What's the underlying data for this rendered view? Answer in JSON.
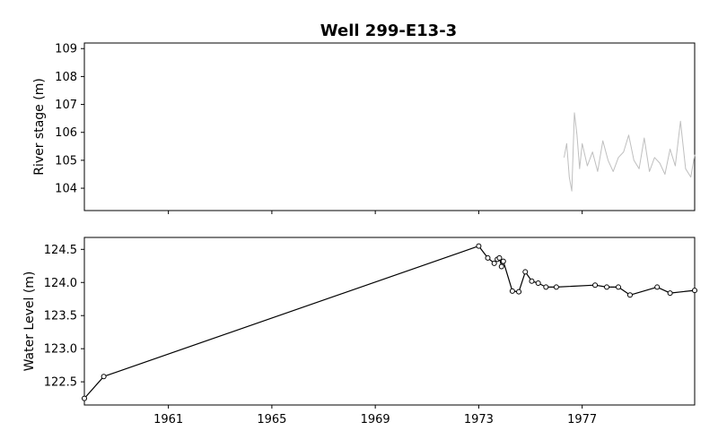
{
  "chart_data": [
    {
      "type": "line",
      "title": "Well 299-E13-3",
      "xlabel": "",
      "ylabel": "River stage (m)",
      "ylim": [
        103.2,
        109.2
      ],
      "yticks": [
        104,
        105,
        106,
        107,
        108,
        109
      ],
      "xlim": [
        1957.75,
        1981.35
      ],
      "x_tick_labels_shown": false,
      "series": [
        {
          "color": "#bfbfbf",
          "x": [
            1976.3,
            1976.4,
            1976.5,
            1976.6,
            1976.7,
            1976.8,
            1976.9,
            1977.0,
            1977.2,
            1977.4,
            1977.6,
            1977.8,
            1978.0,
            1978.2,
            1978.4,
            1978.6,
            1978.8,
            1979.0,
            1979.2,
            1979.4,
            1979.6,
            1979.8,
            1980.0,
            1980.2,
            1980.4,
            1980.6,
            1980.8,
            1981.0,
            1981.2,
            1981.35
          ],
          "y": [
            105.1,
            105.6,
            104.4,
            103.9,
            106.7,
            105.9,
            104.7,
            105.6,
            104.8,
            105.3,
            104.6,
            105.7,
            105.0,
            104.6,
            105.1,
            105.3,
            105.9,
            105.0,
            104.7,
            105.8,
            104.6,
            105.1,
            104.9,
            104.5,
            105.4,
            104.8,
            106.4,
            104.7,
            104.4,
            105.2
          ]
        }
      ]
    },
    {
      "type": "line",
      "xlabel": "",
      "ylabel": "Water Level (m)",
      "ylim": [
        122.15,
        124.68
      ],
      "yticks": [
        122.5,
        123.0,
        123.5,
        124.0,
        124.5
      ],
      "ytick_labels": [
        "122.5",
        "123.0",
        "123.5",
        "124.0",
        "124.5"
      ],
      "xlim": [
        1957.75,
        1981.35
      ],
      "xticks": [
        1961,
        1965,
        1969,
        1973,
        1977
      ],
      "xtick_labels": [
        "1961",
        "1965",
        "1969",
        "1973",
        "1977"
      ],
      "series": [
        {
          "color": "#000000",
          "marker": "circle-open",
          "x": [
            1957.75,
            1958.5,
            1973.0,
            1973.35,
            1973.6,
            1973.72,
            1973.8,
            1973.88,
            1973.95,
            1974.3,
            1974.55,
            1974.8,
            1975.05,
            1975.3,
            1975.6,
            1976.0,
            1977.5,
            1977.95,
            1978.4,
            1978.85,
            1979.9,
            1980.4,
            1981.35
          ],
          "y": [
            122.25,
            122.58,
            124.55,
            124.37,
            124.29,
            124.35,
            124.37,
            124.24,
            124.32,
            123.87,
            123.86,
            124.16,
            124.02,
            123.99,
            123.93,
            123.93,
            123.96,
            123.93,
            123.93,
            123.81,
            123.93,
            123.84,
            123.88
          ]
        }
      ]
    }
  ]
}
